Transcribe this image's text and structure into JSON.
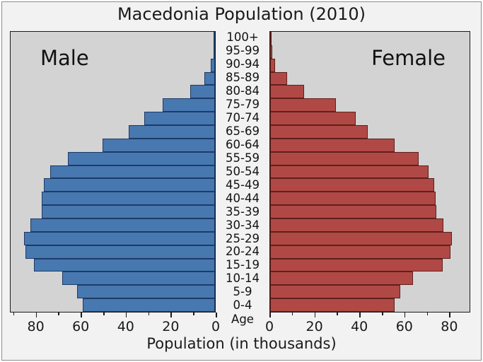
{
  "title": "Macedonia Population (2010)",
  "male_label": "Male",
  "female_label": "Female",
  "xlabel": "Population (in thousands)",
  "age_axis_label": "Age",
  "colors": {
    "male_fill": "#4878b0",
    "male_edge": "#1d3b66",
    "female_fill": "#b04945",
    "female_edge": "#5f1f1d",
    "plot_background": "#d3d3d3",
    "figure_background": "#f2f2f2",
    "spine": "#1a1a1a",
    "text": "#111111"
  },
  "chart_data": {
    "type": "bar",
    "subtype": "population-pyramid",
    "title": "Macedonia Population (2010)",
    "xlabel": "Population (in thousands)",
    "ylabel": "Age",
    "unit": "thousands",
    "orientation": "horizontal",
    "grid": false,
    "xlim": [
      0,
      91
    ],
    "x_major_ticks": [
      0,
      20,
      40,
      60,
      80
    ],
    "x_minor_tick_step": 10,
    "categories_top_to_bottom": [
      "100+",
      "95-99",
      "90-94",
      "85-89",
      "80-84",
      "75-79",
      "70-74",
      "65-69",
      "60-64",
      "55-59",
      "50-54",
      "45-49",
      "40-44",
      "35-39",
      "30-34",
      "25-29",
      "20-24",
      "15-19",
      "10-14",
      "5-9",
      "0-4"
    ],
    "series": [
      {
        "name": "Male",
        "side": "left",
        "values": [
          0.2,
          0.6,
          1.9,
          4.7,
          11.0,
          23.3,
          31.5,
          38.5,
          50.1,
          65.3,
          73.2,
          76.0,
          77.0,
          77.1,
          82.0,
          84.8,
          84.3,
          80.5,
          67.8,
          61.4,
          58.9
        ]
      },
      {
        "name": "Female",
        "side": "right",
        "values": [
          0.2,
          0.8,
          2.2,
          7.4,
          15.0,
          29.4,
          38.0,
          43.4,
          55.4,
          66.0,
          70.5,
          73.0,
          73.6,
          74.0,
          77.0,
          80.9,
          80.2,
          76.6,
          63.6,
          58.0,
          55.5
        ]
      }
    ]
  }
}
